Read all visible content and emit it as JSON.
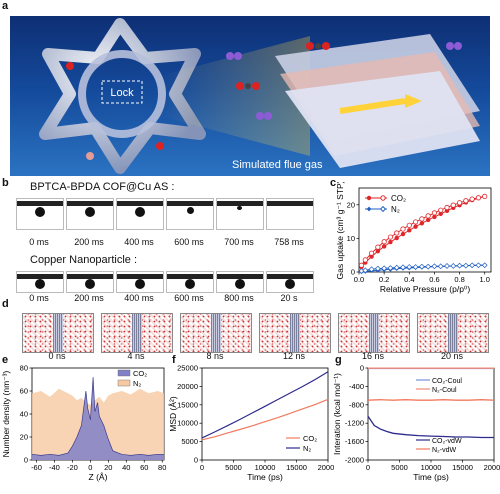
{
  "labels": {
    "a": "a",
    "b": "b",
    "c": "c",
    "d": "d",
    "e": "e",
    "f": "f",
    "g": "g"
  },
  "panel_a": {
    "lock_text": "Lock",
    "caption": "Simulated flue gas"
  },
  "panel_b": {
    "title1": "BPTCA-BPDA COF@Cu AS :",
    "times1": [
      "0 ms",
      "200 ms",
      "400 ms",
      "600 ms",
      "700 ms",
      "758 ms"
    ],
    "title2": "Copper Nanoparticle :",
    "times2": [
      "0 ms",
      "200 ms",
      "400 ms",
      "600 ms",
      "800 ms",
      "20 s"
    ]
  },
  "panel_d": {
    "times": [
      "0 ns",
      "4 ns",
      "8 ns",
      "12 ns",
      "16 ns",
      "20 ns"
    ]
  },
  "colors": {
    "co2": "#e0262a",
    "n2": "#1f5fc4",
    "co2_fill": "#8080c8",
    "n2_fill": "#f6c9a3",
    "f_co2": "#f27a5e",
    "f_n2": "#2e2a8c",
    "g_co2_coul": "#7b8fd8",
    "g_n2_coul": "#f08a78",
    "g_co2_vdw": "#2e2a8c",
    "g_n2_vdw": "#f27a5e"
  },
  "chart_data": [
    {
      "id": "c",
      "type": "line",
      "xlabel": "Relative Pressure (p/p⁰)",
      "ylabel": "Gas uptake (cm³ g⁻¹ STP)",
      "xlim": [
        0,
        1.05
      ],
      "ylim": [
        0,
        25
      ],
      "xticks": [
        "0.0",
        "0.2",
        "0.4",
        "0.6",
        "0.8",
        "1.0"
      ],
      "xtick_values": [
        0,
        0.2,
        0.4,
        0.6,
        0.8,
        1.0
      ],
      "yticks": [
        "0",
        "10",
        "20"
      ],
      "ytick_values": [
        0,
        10,
        20
      ],
      "series": [
        {
          "name": "CO₂",
          "x": [
            0.02,
            0.05,
            0.1,
            0.15,
            0.2,
            0.25,
            0.3,
            0.35,
            0.4,
            0.45,
            0.5,
            0.55,
            0.6,
            0.65,
            0.7,
            0.75,
            0.8,
            0.85,
            0.9,
            0.95,
            1.0
          ],
          "adsorption": [
            1.5,
            2.8,
            4.6,
            6.2,
            7.6,
            8.9,
            10.1,
            11.3,
            12.4,
            13.5,
            14.5,
            15.5,
            16.4,
            17.3,
            18.2,
            19.1,
            19.9,
            20.7,
            21.4,
            22.0,
            22.5
          ],
          "desorption": [
            2.0,
            3.6,
            5.6,
            7.4,
            9.0,
            10.4,
            11.6,
            12.8,
            13.9,
            14.9,
            15.8,
            16.7,
            17.6,
            18.4,
            19.2,
            19.9,
            20.6,
            21.2,
            21.7,
            22.1,
            22.5
          ]
        },
        {
          "name": "N₂",
          "x": [
            0.02,
            0.05,
            0.1,
            0.15,
            0.2,
            0.25,
            0.3,
            0.35,
            0.4,
            0.45,
            0.5,
            0.55,
            0.6,
            0.65,
            0.7,
            0.75,
            0.8,
            0.85,
            0.9,
            0.95,
            1.0
          ],
          "adsorption": [
            0.1,
            0.2,
            0.4,
            0.5,
            0.7,
            0.8,
            1.0,
            1.1,
            1.2,
            1.3,
            1.4,
            1.5,
            1.6,
            1.6,
            1.7,
            1.8,
            1.8,
            1.9,
            1.9,
            2.0,
            2.0
          ],
          "desorption": [
            0.3,
            0.5,
            0.8,
            1.0,
            1.1,
            1.2,
            1.3,
            1.4,
            1.5,
            1.5,
            1.6,
            1.6,
            1.7,
            1.7,
            1.8,
            1.8,
            1.9,
            1.9,
            2.0,
            2.0,
            2.0
          ]
        }
      ]
    },
    {
      "id": "e",
      "type": "area",
      "xlabel": "Z (Å)",
      "ylabel": "Number density (nm⁻³)",
      "xlim": [
        -65,
        82
      ],
      "ylim": [
        0,
        80
      ],
      "xticks": [
        "-60",
        "-40",
        "-20",
        "0",
        "20",
        "40",
        "60",
        "80"
      ],
      "xtick_values": [
        -60,
        -40,
        -20,
        0,
        20,
        40,
        60,
        80
      ],
      "yticks": [
        "0",
        "20",
        "40",
        "60",
        "80"
      ],
      "ytick_values": [
        0,
        20,
        40,
        60,
        80
      ],
      "series": [
        {
          "name": "CO₂",
          "x": [
            -65,
            -55,
            -45,
            -35,
            -25,
            -20,
            -15,
            -10,
            -5,
            -3,
            0,
            3,
            5,
            8,
            10,
            15,
            20,
            25,
            35,
            45,
            55,
            65,
            75,
            82
          ],
          "values": [
            5,
            4,
            5,
            4,
            6,
            12,
            20,
            30,
            60,
            45,
            35,
            72,
            42,
            50,
            38,
            30,
            18,
            8,
            5,
            4,
            5,
            4,
            5,
            5
          ]
        },
        {
          "name": "N₂",
          "x": [
            -65,
            -55,
            -45,
            -35,
            -25,
            -20,
            -15,
            -10,
            -5,
            0,
            5,
            10,
            15,
            20,
            25,
            35,
            45,
            55,
            65,
            75,
            82
          ],
          "values": [
            58,
            60,
            55,
            62,
            58,
            56,
            52,
            54,
            50,
            48,
            52,
            55,
            50,
            56,
            58,
            60,
            57,
            62,
            58,
            60,
            58
          ]
        }
      ]
    },
    {
      "id": "f",
      "type": "line",
      "xlabel": "Time (ps)",
      "ylabel": "MSD (Å²)",
      "xlim": [
        0,
        20000
      ],
      "ylim": [
        0,
        25000
      ],
      "xticks": [
        "0",
        "5000",
        "10000",
        "15000",
        "20000"
      ],
      "xtick_values": [
        0,
        5000,
        10000,
        15000,
        20000
      ],
      "yticks": [
        "0",
        "5000",
        "10000",
        "15000",
        "20000",
        "25000"
      ],
      "ytick_values": [
        0,
        5000,
        10000,
        15000,
        20000,
        25000
      ],
      "series": [
        {
          "name": "CO₂",
          "x": [
            0,
            2000,
            4000,
            6000,
            8000,
            10000,
            12000,
            14000,
            16000,
            18000,
            20000
          ],
          "values": [
            5500,
            6300,
            7300,
            8300,
            9300,
            10400,
            11500,
            12700,
            13900,
            15100,
            16500
          ]
        },
        {
          "name": "N₂",
          "x": [
            0,
            2000,
            4000,
            6000,
            8000,
            10000,
            12000,
            14000,
            16000,
            18000,
            20000
          ],
          "values": [
            6000,
            7600,
            9300,
            11000,
            12800,
            14600,
            16400,
            18200,
            20000,
            21900,
            24000
          ]
        }
      ]
    },
    {
      "id": "g",
      "type": "line",
      "xlabel": "Time (ps)",
      "ylabel": "Interation (kcal mol⁻¹)",
      "xlim": [
        0,
        20000
      ],
      "ylim": [
        -2000,
        0
      ],
      "xticks": [
        "0",
        "5000",
        "10000",
        "15000",
        "20000"
      ],
      "xtick_values": [
        0,
        5000,
        10000,
        15000,
        20000
      ],
      "yticks": [
        "0",
        "-400",
        "-800",
        "-1200",
        "-1600",
        "-2000"
      ],
      "ytick_values": [
        0,
        -400,
        -800,
        -1200,
        -1600,
        -2000
      ],
      "series": [
        {
          "name": "CO₂-Coul",
          "x": [
            0,
            5000,
            10000,
            15000,
            20000
          ],
          "values": [
            -10,
            -10,
            -10,
            -10,
            -10
          ]
        },
        {
          "name": "N₂-Coul",
          "x": [
            0,
            5000,
            10000,
            15000,
            20000
          ],
          "values": [
            -5,
            -5,
            -5,
            -5,
            -5
          ]
        },
        {
          "name": "CO₂-vdW",
          "x": [
            0,
            1000,
            2000,
            3000,
            4000,
            6000,
            8000,
            10000,
            12000,
            14000,
            16000,
            18000,
            20000
          ],
          "values": [
            -1050,
            -1250,
            -1330,
            -1380,
            -1420,
            -1450,
            -1470,
            -1480,
            -1490,
            -1500,
            -1500,
            -1510,
            -1510
          ]
        },
        {
          "name": "N₂-vdW",
          "x": [
            0,
            2000,
            4000,
            6000,
            8000,
            10000,
            12000,
            14000,
            16000,
            18000,
            20000
          ],
          "values": [
            -700,
            -690,
            -700,
            -690,
            -700,
            -700,
            -690,
            -700,
            -700,
            -690,
            -700
          ]
        }
      ]
    }
  ]
}
